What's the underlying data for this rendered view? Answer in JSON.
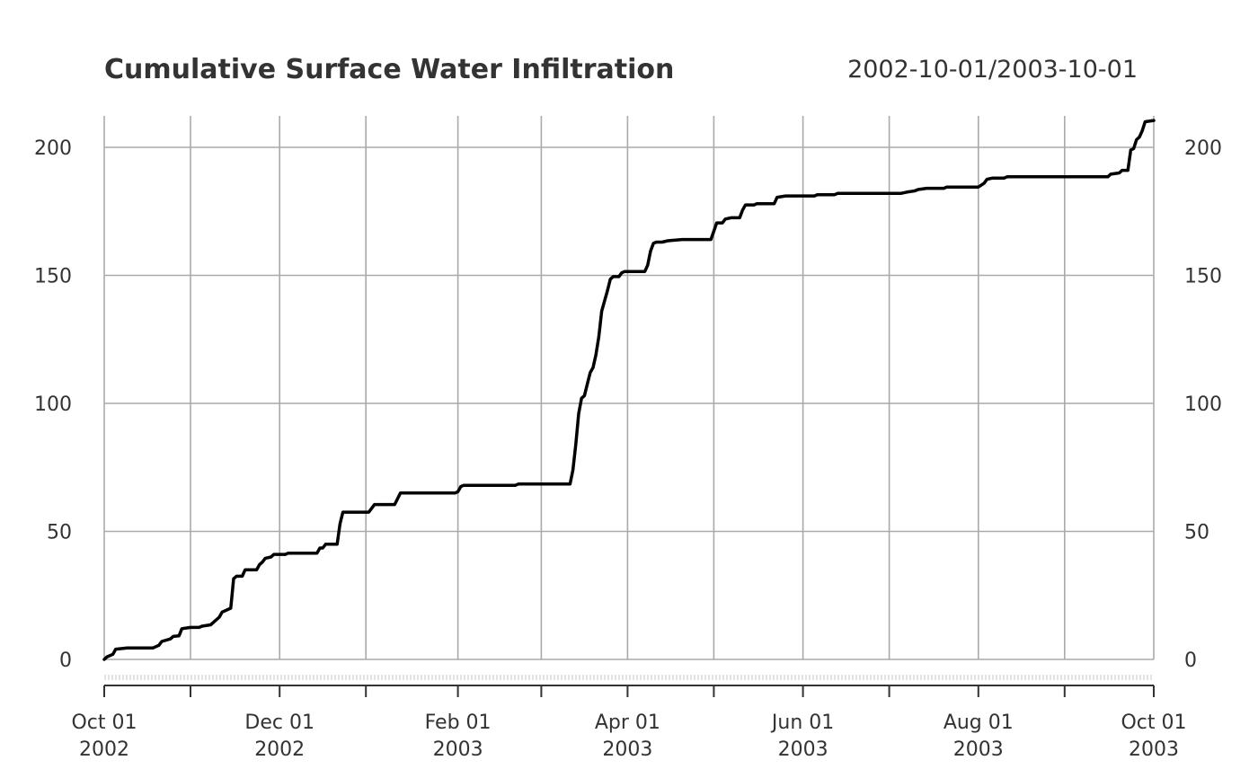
{
  "chart_data": {
    "type": "line",
    "title": "Cumulative Surface Water Infiltration",
    "date_range": "2002-10-01/2003-10-01",
    "xlabel": "",
    "ylabel": "",
    "xlim": [
      "2002-10-01",
      "2003-10-01"
    ],
    "ylim": [
      0,
      200
    ],
    "grid": true,
    "y_ticks": [
      "0",
      "50",
      "100",
      "150",
      "200"
    ],
    "y_tick_values": [
      0,
      50,
      100,
      150,
      200
    ],
    "x_ticks": [
      {
        "date": "2002-10-01",
        "line1": "Oct 01",
        "line2": "2002"
      },
      {
        "date": "2002-12-01",
        "line1": "Dec 01",
        "line2": "2002"
      },
      {
        "date": "2003-02-01",
        "line1": "Feb 01",
        "line2": "2003"
      },
      {
        "date": "2003-04-01",
        "line1": "Apr 01",
        "line2": "2003"
      },
      {
        "date": "2003-06-01",
        "line1": "Jun 01",
        "line2": "2003"
      },
      {
        "date": "2003-08-01",
        "line1": "Aug 01",
        "line2": "2003"
      },
      {
        "date": "2003-10-01",
        "line1": "Oct 01",
        "line2": "2003"
      }
    ],
    "x_minor_ticks": [
      "2002-10-31",
      "2002-12-31",
      "2003-03-02",
      "2003-05-01",
      "2003-07-01",
      "2003-08-31"
    ],
    "series": [
      {
        "color": "#000000",
        "points": [
          [
            "2002-10-01",
            0
          ],
          [
            "2002-10-02",
            1
          ],
          [
            "2002-10-04",
            2
          ],
          [
            "2002-10-05",
            4
          ],
          [
            "2002-10-09",
            4.5
          ],
          [
            "2002-10-18",
            4.5
          ],
          [
            "2002-10-20",
            5.5
          ],
          [
            "2002-10-21",
            7
          ],
          [
            "2002-10-24",
            8
          ],
          [
            "2002-10-25",
            9
          ],
          [
            "2002-10-27",
            9.2
          ],
          [
            "2002-10-28",
            12
          ],
          [
            "2002-10-31",
            12.5
          ],
          [
            "2002-11-03",
            12.5
          ],
          [
            "2002-11-04",
            13
          ],
          [
            "2002-11-07",
            13.5
          ],
          [
            "2002-11-08",
            14.5
          ],
          [
            "2002-11-10",
            16.5
          ],
          [
            "2002-11-11",
            18.5
          ],
          [
            "2002-11-14",
            20
          ],
          [
            "2002-11-15",
            31.5
          ],
          [
            "2002-11-16",
            32.5
          ],
          [
            "2002-11-18",
            32.5
          ],
          [
            "2002-11-19",
            35
          ],
          [
            "2002-11-23",
            35
          ],
          [
            "2002-11-24",
            37
          ],
          [
            "2002-11-25",
            38
          ],
          [
            "2002-11-26",
            39.5
          ],
          [
            "2002-11-28",
            40
          ],
          [
            "2002-11-29",
            41
          ],
          [
            "2002-12-03",
            41
          ],
          [
            "2002-12-04",
            41.5
          ],
          [
            "2002-12-13",
            41.5
          ],
          [
            "2002-12-14",
            41.5
          ],
          [
            "2002-12-15",
            43.5
          ],
          [
            "2002-12-16",
            43.5
          ],
          [
            "2002-12-17",
            45
          ],
          [
            "2002-12-21",
            45
          ],
          [
            "2002-12-22",
            53
          ],
          [
            "2002-12-23",
            57.5
          ],
          [
            "2003-01-01",
            57.5
          ],
          [
            "2003-01-03",
            60.5
          ],
          [
            "2003-01-10",
            60.5
          ],
          [
            "2003-01-12",
            65
          ],
          [
            "2003-01-31",
            65
          ],
          [
            "2003-02-01",
            65.5
          ],
          [
            "2003-02-02",
            67.5
          ],
          [
            "2003-02-03",
            68
          ],
          [
            "2003-02-21",
            68
          ],
          [
            "2003-02-22",
            68.5
          ],
          [
            "2003-03-12",
            68.5
          ],
          [
            "2003-03-13",
            74
          ],
          [
            "2003-03-14",
            84
          ],
          [
            "2003-03-15",
            96
          ],
          [
            "2003-03-16",
            102
          ],
          [
            "2003-03-17",
            103
          ],
          [
            "2003-03-18",
            107.5
          ],
          [
            "2003-03-19",
            112
          ],
          [
            "2003-03-20",
            114
          ],
          [
            "2003-03-21",
            119
          ],
          [
            "2003-03-22",
            126
          ],
          [
            "2003-03-23",
            136
          ],
          [
            "2003-03-24",
            140
          ],
          [
            "2003-03-25",
            144
          ],
          [
            "2003-03-26",
            148.5
          ],
          [
            "2003-03-27",
            149.5
          ],
          [
            "2003-03-29",
            149.5
          ],
          [
            "2003-03-30",
            151
          ],
          [
            "2003-03-31",
            151.5
          ],
          [
            "2003-04-07",
            151.5
          ],
          [
            "2003-04-08",
            154
          ],
          [
            "2003-04-09",
            159.5
          ],
          [
            "2003-04-10",
            162.5
          ],
          [
            "2003-04-11",
            163
          ],
          [
            "2003-04-13",
            163
          ],
          [
            "2003-04-15",
            163.5
          ],
          [
            "2003-04-20",
            164
          ],
          [
            "2003-04-30",
            164
          ],
          [
            "2003-05-02",
            170.5
          ],
          [
            "2003-05-04",
            170.5
          ],
          [
            "2003-05-05",
            172
          ],
          [
            "2003-05-07",
            172.5
          ],
          [
            "2003-05-10",
            172.5
          ],
          [
            "2003-05-11",
            175.5
          ],
          [
            "2003-05-12",
            177.5
          ],
          [
            "2003-05-15",
            177.5
          ],
          [
            "2003-05-16",
            178
          ],
          [
            "2003-05-22",
            178
          ],
          [
            "2003-05-23",
            180.5
          ],
          [
            "2003-05-26",
            181
          ],
          [
            "2003-06-05",
            181
          ],
          [
            "2003-06-06",
            181.5
          ],
          [
            "2003-06-12",
            181.5
          ],
          [
            "2003-06-13",
            182
          ],
          [
            "2003-06-20",
            182
          ],
          [
            "2003-06-30",
            182
          ],
          [
            "2003-07-05",
            182
          ],
          [
            "2003-07-07",
            182.5
          ],
          [
            "2003-07-10",
            183
          ],
          [
            "2003-07-11",
            183.5
          ],
          [
            "2003-07-14",
            184
          ],
          [
            "2003-07-20",
            184
          ],
          [
            "2003-07-21",
            184.5
          ],
          [
            "2003-08-01",
            184.5
          ],
          [
            "2003-08-03",
            186
          ],
          [
            "2003-08-04",
            187.5
          ],
          [
            "2003-08-06",
            188
          ],
          [
            "2003-08-10",
            188
          ],
          [
            "2003-08-11",
            188.5
          ],
          [
            "2003-08-25",
            188.5
          ],
          [
            "2003-09-15",
            188.5
          ],
          [
            "2003-09-16",
            189.5
          ],
          [
            "2003-09-19",
            190
          ],
          [
            "2003-09-20",
            191
          ],
          [
            "2003-09-22",
            191
          ],
          [
            "2003-09-23",
            199
          ],
          [
            "2003-09-24",
            199.5
          ],
          [
            "2003-09-25",
            203
          ],
          [
            "2003-09-26",
            204
          ],
          [
            "2003-09-27",
            206.5
          ],
          [
            "2003-09-28",
            210
          ],
          [
            "2003-10-01",
            210.5
          ]
        ]
      }
    ]
  }
}
